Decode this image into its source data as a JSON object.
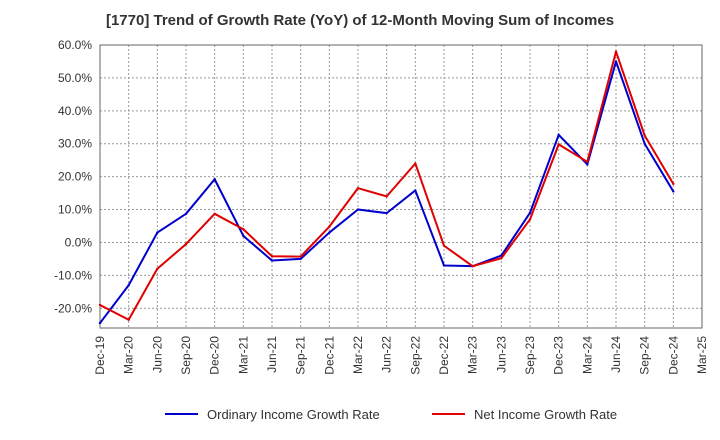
{
  "chart_data": {
    "type": "line",
    "title": "[1770]  Trend of Growth Rate (YoY) of 12-Month Moving Sum of Incomes",
    "xlabel": "",
    "ylabel": "",
    "categories": [
      "Dec-19",
      "Mar-20",
      "Jun-20",
      "Sep-20",
      "Dec-20",
      "Mar-21",
      "Jun-21",
      "Sep-21",
      "Dec-21",
      "Mar-22",
      "Jun-22",
      "Sep-22",
      "Dec-22",
      "Mar-23",
      "Jun-23",
      "Sep-23",
      "Dec-23",
      "Mar-24",
      "Jun-24",
      "Sep-24",
      "Dec-24",
      "Mar-25"
    ],
    "ylim": [
      -26,
      60
    ],
    "yticks": [
      60,
      50,
      40,
      30,
      20,
      10,
      0,
      -10,
      -20
    ],
    "ytick_labels": [
      "60.0%",
      "50.0%",
      "40.0%",
      "30.0%",
      "20.0%",
      "10.0%",
      "0.0%",
      "-10.0%",
      "-20.0%"
    ],
    "grid": true,
    "legend_position": "bottom",
    "series": [
      {
        "name": "Ordinary Income Growth Rate",
        "color": "#0000cc",
        "values": [
          -24.5,
          -13.0,
          3.0,
          8.7,
          19.2,
          2.0,
          -5.5,
          -5.0,
          3.0,
          10.0,
          8.9,
          15.8,
          -7.0,
          -7.2,
          -4.0,
          9.0,
          32.7,
          23.7,
          55.0,
          30.0,
          15.5,
          null
        ]
      },
      {
        "name": "Net Income Growth Rate",
        "color": "#e00000",
        "values": [
          -19.0,
          -23.5,
          -8.0,
          -0.5,
          8.7,
          4.0,
          -4.2,
          -4.3,
          4.8,
          16.5,
          14.0,
          24.0,
          -1.0,
          -7.2,
          -4.8,
          7.0,
          29.8,
          24.5,
          58.0,
          32.5,
          17.8,
          null
        ]
      }
    ]
  }
}
